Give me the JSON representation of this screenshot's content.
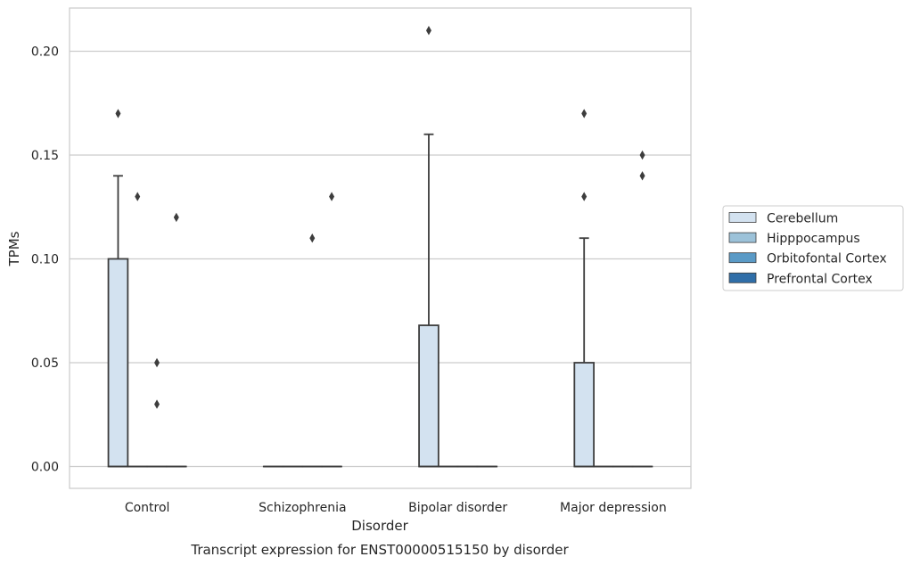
{
  "chart_data": {
    "type": "box",
    "title": "",
    "xlabel": "Disorder",
    "ylabel": "TPMs",
    "caption": "Transcript expression for ENST00000515150 by disorder",
    "ylim": [
      -0.01,
      0.22
    ],
    "yticks": [
      0.0,
      0.05,
      0.1,
      0.15,
      0.2
    ],
    "ytick_labels": [
      "0.00",
      "0.05",
      "0.10",
      "0.15",
      "0.20"
    ],
    "grid": "horizontal",
    "legend_position": "right",
    "categories": [
      "Control",
      "Schizophrenia",
      "Bipolar disorder",
      "Major depression"
    ],
    "series": [
      {
        "name": "Cerebellum",
        "color": "#d3e2f0",
        "boxes": [
          {
            "q1": 0.0,
            "median": 0.0,
            "q3": 0.1,
            "whisker_low": 0.0,
            "whisker_high": 0.14,
            "outliers": [
              0.17
            ]
          },
          {
            "q1": 0.0,
            "median": 0.0,
            "q3": 0.0,
            "whisker_low": 0.0,
            "whisker_high": 0.0,
            "outliers": []
          },
          {
            "q1": 0.0,
            "median": 0.0,
            "q3": 0.068,
            "whisker_low": 0.0,
            "whisker_high": 0.16,
            "outliers": [
              0.21
            ]
          },
          {
            "q1": 0.0,
            "median": 0.0,
            "q3": 0.05,
            "whisker_low": 0.0,
            "whisker_high": 0.11,
            "outliers": [
              0.17,
              0.13
            ]
          }
        ]
      },
      {
        "name": "Hipppocampus",
        "color": "#9cc2d9",
        "boxes": [
          {
            "q1": 0.0,
            "median": 0.0,
            "q3": 0.0,
            "whisker_low": 0.0,
            "whisker_high": 0.0,
            "outliers": [
              0.13
            ]
          },
          {
            "q1": 0.0,
            "median": 0.0,
            "q3": 0.0,
            "whisker_low": 0.0,
            "whisker_high": 0.0,
            "outliers": []
          },
          {
            "q1": 0.0,
            "median": 0.0,
            "q3": 0.0,
            "whisker_low": 0.0,
            "whisker_high": 0.0,
            "outliers": []
          },
          {
            "q1": 0.0,
            "median": 0.0,
            "q3": 0.0,
            "whisker_low": 0.0,
            "whisker_high": 0.0,
            "outliers": []
          }
        ]
      },
      {
        "name": "Orbitofontal Cortex",
        "color": "#5a9ac6",
        "boxes": [
          {
            "q1": 0.0,
            "median": 0.0,
            "q3": 0.0,
            "whisker_low": 0.0,
            "whisker_high": 0.0,
            "outliers": [
              0.05,
              0.03
            ]
          },
          {
            "q1": 0.0,
            "median": 0.0,
            "q3": 0.0,
            "whisker_low": 0.0,
            "whisker_high": 0.0,
            "outliers": [
              0.11
            ]
          },
          {
            "q1": 0.0,
            "median": 0.0,
            "q3": 0.0,
            "whisker_low": 0.0,
            "whisker_high": 0.0,
            "outliers": []
          },
          {
            "q1": 0.0,
            "median": 0.0,
            "q3": 0.0,
            "whisker_low": 0.0,
            "whisker_high": 0.0,
            "outliers": []
          }
        ]
      },
      {
        "name": "Prefrontal Cortex",
        "color": "#2f6ea8",
        "boxes": [
          {
            "q1": 0.0,
            "median": 0.0,
            "q3": 0.0,
            "whisker_low": 0.0,
            "whisker_high": 0.0,
            "outliers": [
              0.12
            ]
          },
          {
            "q1": 0.0,
            "median": 0.0,
            "q3": 0.0,
            "whisker_low": 0.0,
            "whisker_high": 0.0,
            "outliers": [
              0.13
            ]
          },
          {
            "q1": 0.0,
            "median": 0.0,
            "q3": 0.0,
            "whisker_low": 0.0,
            "whisker_high": 0.0,
            "outliers": []
          },
          {
            "q1": 0.0,
            "median": 0.0,
            "q3": 0.0,
            "whisker_low": 0.0,
            "whisker_high": 0.0,
            "outliers": [
              0.15,
              0.14
            ]
          }
        ]
      }
    ]
  }
}
